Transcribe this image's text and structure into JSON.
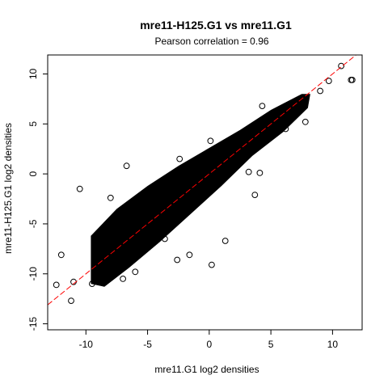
{
  "chart_data": {
    "type": "scatter",
    "title": "mre11-H125.G1 vs mre11.G1",
    "subtitle": "Pearson correlation =  0.96",
    "xlabel": "mre11.G1 log2 densities",
    "ylabel": "mre11-H125.G1 log2 densities",
    "xlim": [
      -13.1,
      12.4
    ],
    "ylim": [
      -15.6,
      11.9
    ],
    "xticks": [
      -10,
      -5,
      0,
      5,
      10
    ],
    "yticks": [
      -15,
      -10,
      -5,
      0,
      5,
      10
    ],
    "grid": false,
    "legend": "none",
    "fit_line": {
      "slope": 1.0,
      "intercept": 0.0,
      "color": "#ff0000"
    },
    "marker": {
      "shape": "open-circle",
      "color": "#000000"
    },
    "points": [
      {
        "x": 10.7,
        "y": 10.8
      },
      {
        "x": 11.5,
        "y": 9.4
      },
      {
        "x": 11.6,
        "y": 9.4
      },
      {
        "x": 9.7,
        "y": 9.3
      },
      {
        "x": 9.0,
        "y": 8.3
      },
      {
        "x": 4.3,
        "y": 6.8
      },
      {
        "x": 4.8,
        "y": 4.6
      },
      {
        "x": 0.1,
        "y": 3.3
      },
      {
        "x": -6.7,
        "y": 0.8
      },
      {
        "x": -2.4,
        "y": 1.5
      },
      {
        "x": -10.5,
        "y": -1.5
      },
      {
        "x": -8.0,
        "y": -2.4
      },
      {
        "x": -12.4,
        "y": -11.1
      },
      {
        "x": -12.0,
        "y": -8.1
      },
      {
        "x": -11.2,
        "y": -12.7
      },
      {
        "x": -11.0,
        "y": -10.8
      },
      {
        "x": -2.6,
        "y": -8.6
      },
      {
        "x": -1.6,
        "y": -8.1
      },
      {
        "x": 0.2,
        "y": -9.1
      },
      {
        "x": -3.6,
        "y": -6.5
      },
      {
        "x": 1.3,
        "y": -6.7
      },
      {
        "x": 3.7,
        "y": -2.1
      },
      {
        "x": 3.2,
        "y": 0.2
      },
      {
        "x": 4.1,
        "y": 0.1
      },
      {
        "x": 6.2,
        "y": 4.5
      },
      {
        "x": 7.8,
        "y": 5.2
      },
      {
        "x": -6.0,
        "y": -9.8
      },
      {
        "x": -7.0,
        "y": -10.5
      },
      {
        "x": -9.5,
        "y": -11.0
      }
    ]
  }
}
